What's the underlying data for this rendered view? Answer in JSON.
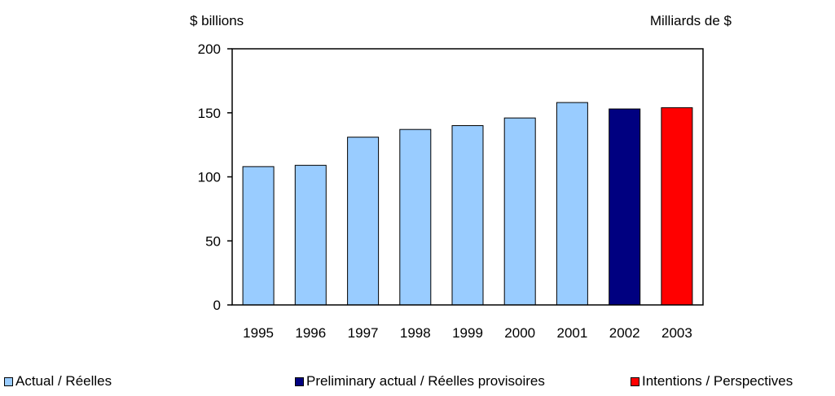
{
  "chart_data": {
    "type": "bar",
    "ylabel_left": "$ billions",
    "ylabel_right": "Milliards de $",
    "ylim": [
      0,
      200
    ],
    "yticks": [
      0,
      50,
      100,
      150,
      200
    ],
    "grid": false,
    "legend_placement": "bottom",
    "categories": [
      "1995",
      "1996",
      "1997",
      "1998",
      "1999",
      "2000",
      "2001",
      "2002",
      "2003"
    ],
    "values": [
      108,
      109,
      131,
      137,
      140,
      146,
      158,
      153,
      154
    ],
    "bar_status": [
      "actual",
      "actual",
      "actual",
      "actual",
      "actual",
      "actual",
      "actual",
      "preliminary",
      "intentions"
    ],
    "legend": [
      {
        "key": "actual",
        "label": "Actual / Réelles",
        "color": "#99CCFF"
      },
      {
        "key": "preliminary",
        "label": "Preliminary actual / Réelles provisoires",
        "color": "#000080"
      },
      {
        "key": "intentions",
        "label": "Intentions / Perspectives",
        "color": "#FF0000"
      }
    ]
  }
}
